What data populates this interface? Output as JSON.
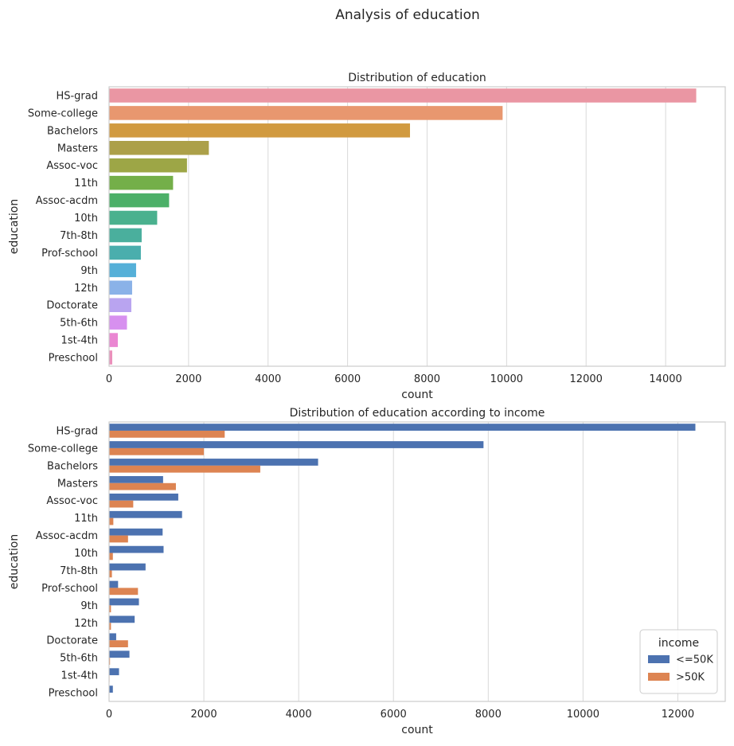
{
  "figure": {
    "suptitle": "Analysis of education"
  },
  "chart_data": [
    {
      "type": "bar",
      "orientation": "horizontal",
      "title": "Distribution of education",
      "xlabel": "count",
      "ylabel": "education",
      "xlim": [
        0,
        15500
      ],
      "xticks": [
        0,
        2000,
        4000,
        6000,
        8000,
        10000,
        12000,
        14000
      ],
      "grid": true,
      "categories": [
        "HS-grad",
        "Some-college",
        "Bachelors",
        "Masters",
        "Assoc-voc",
        "11th",
        "Assoc-acdm",
        "10th",
        "7th-8th",
        "Prof-school",
        "9th",
        "12th",
        "Doctorate",
        "5th-6th",
        "1st-4th",
        "Preschool"
      ],
      "values": [
        14770,
        9900,
        7570,
        2510,
        1960,
        1610,
        1510,
        1210,
        820,
        800,
        680,
        580,
        560,
        450,
        220,
        80
      ],
      "colors": [
        "#ea96a3",
        "#e8976f",
        "#d19a40",
        "#aca049",
        "#9da646",
        "#74af49",
        "#4cb068",
        "#4ab18e",
        "#4aaf9d",
        "#4aaead",
        "#55b0d8",
        "#8ab2e8",
        "#b9a4f0",
        "#d790ef",
        "#ea86d2",
        "#eb90bb"
      ]
    },
    {
      "type": "bar",
      "orientation": "horizontal",
      "title": "Distribution of education according to income",
      "xlabel": "count",
      "ylabel": "education",
      "xlim": [
        0,
        13000
      ],
      "xticks": [
        0,
        2000,
        4000,
        6000,
        8000,
        10000,
        12000
      ],
      "grid": true,
      "categories": [
        "HS-grad",
        "Some-college",
        "Bachelors",
        "Masters",
        "Assoc-voc",
        "11th",
        "Assoc-acdm",
        "10th",
        "7th-8th",
        "Prof-school",
        "9th",
        "12th",
        "Doctorate",
        "5th-6th",
        "1st-4th",
        "Preschool"
      ],
      "legend": {
        "title": "income",
        "placement": "lower-right"
      },
      "series": [
        {
          "name": "<=50K",
          "color": "#4c72b0",
          "values": [
            12370,
            7900,
            4410,
            1140,
            1460,
            1540,
            1130,
            1150,
            770,
            190,
            630,
            540,
            150,
            430,
            210,
            80
          ]
        },
        {
          "name": ">50K",
          "color": "#dd8452",
          "values": [
            2440,
            2000,
            3190,
            1410,
            510,
            90,
            400,
            80,
            60,
            610,
            40,
            40,
            400,
            20,
            10,
            0
          ]
        }
      ]
    }
  ]
}
